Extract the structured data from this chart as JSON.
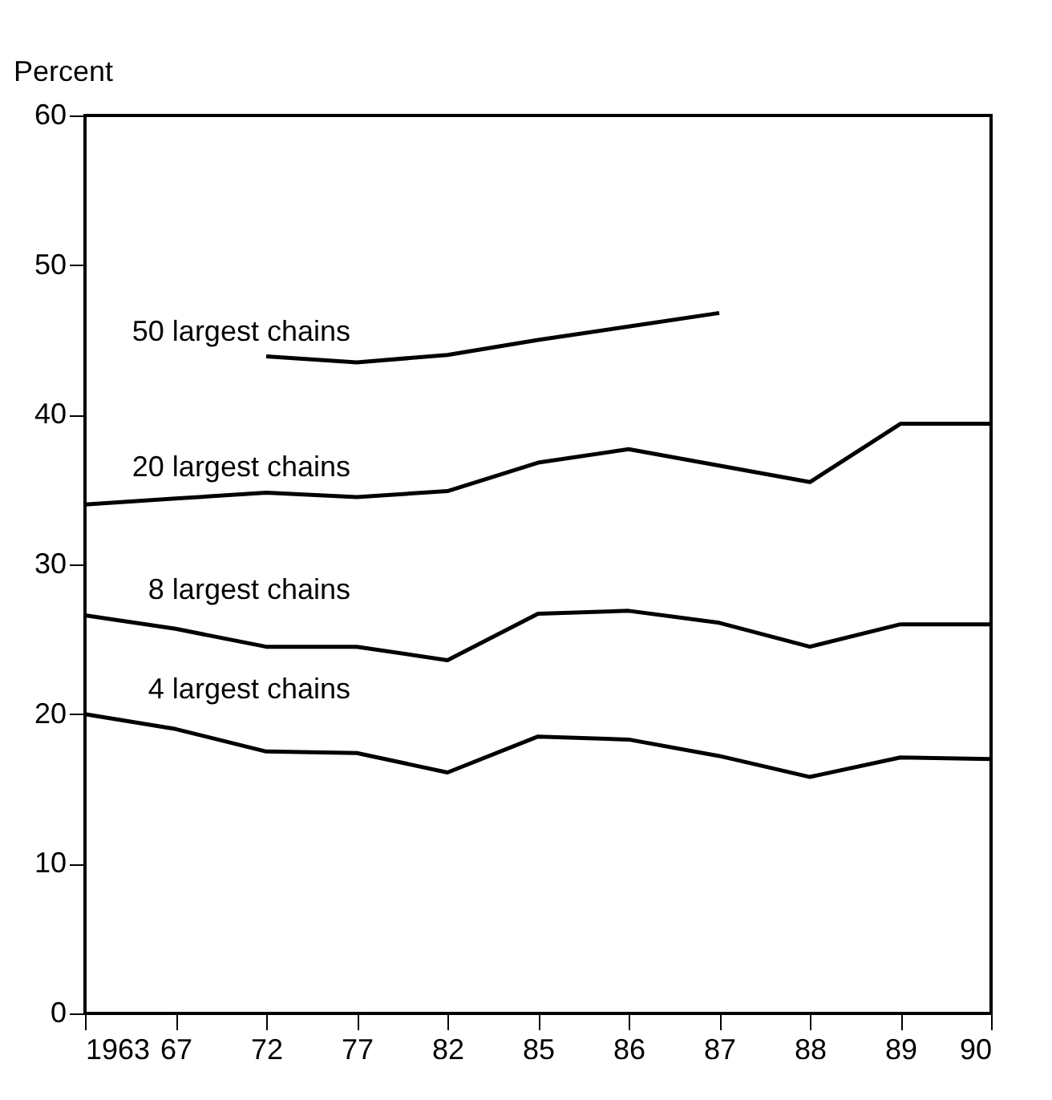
{
  "chart_data": {
    "type": "line",
    "ylabel": "Percent",
    "categories": [
      "1963",
      "67",
      "72",
      "77",
      "82",
      "85",
      "86",
      "87",
      "88",
      "89",
      "90"
    ],
    "series": [
      {
        "name": "50 largest chains",
        "color": "#000000",
        "values": [
          null,
          null,
          43.9,
          43.5,
          44.0,
          45.0,
          45.9,
          46.8,
          null,
          null,
          null
        ]
      },
      {
        "name": "20 largest chains",
        "color": "#000000",
        "values": [
          34.0,
          34.4,
          34.8,
          34.5,
          34.9,
          36.8,
          37.7,
          36.6,
          35.5,
          39.4,
          39.4
        ]
      },
      {
        "name": "8 largest chains",
        "color": "#000000",
        "values": [
          26.6,
          25.7,
          24.5,
          24.5,
          23.6,
          26.7,
          26.9,
          26.1,
          24.5,
          26.0,
          26.0
        ]
      },
      {
        "name": "4 largest chains",
        "color": "#000000",
        "values": [
          20.0,
          19.0,
          17.5,
          17.4,
          16.1,
          18.5,
          18.3,
          17.2,
          15.8,
          17.1,
          17.0
        ]
      }
    ],
    "ylim": [
      0,
      60
    ],
    "yticks": [
      0,
      10,
      20,
      30,
      40,
      50,
      60
    ],
    "grid": false,
    "legend": false
  }
}
